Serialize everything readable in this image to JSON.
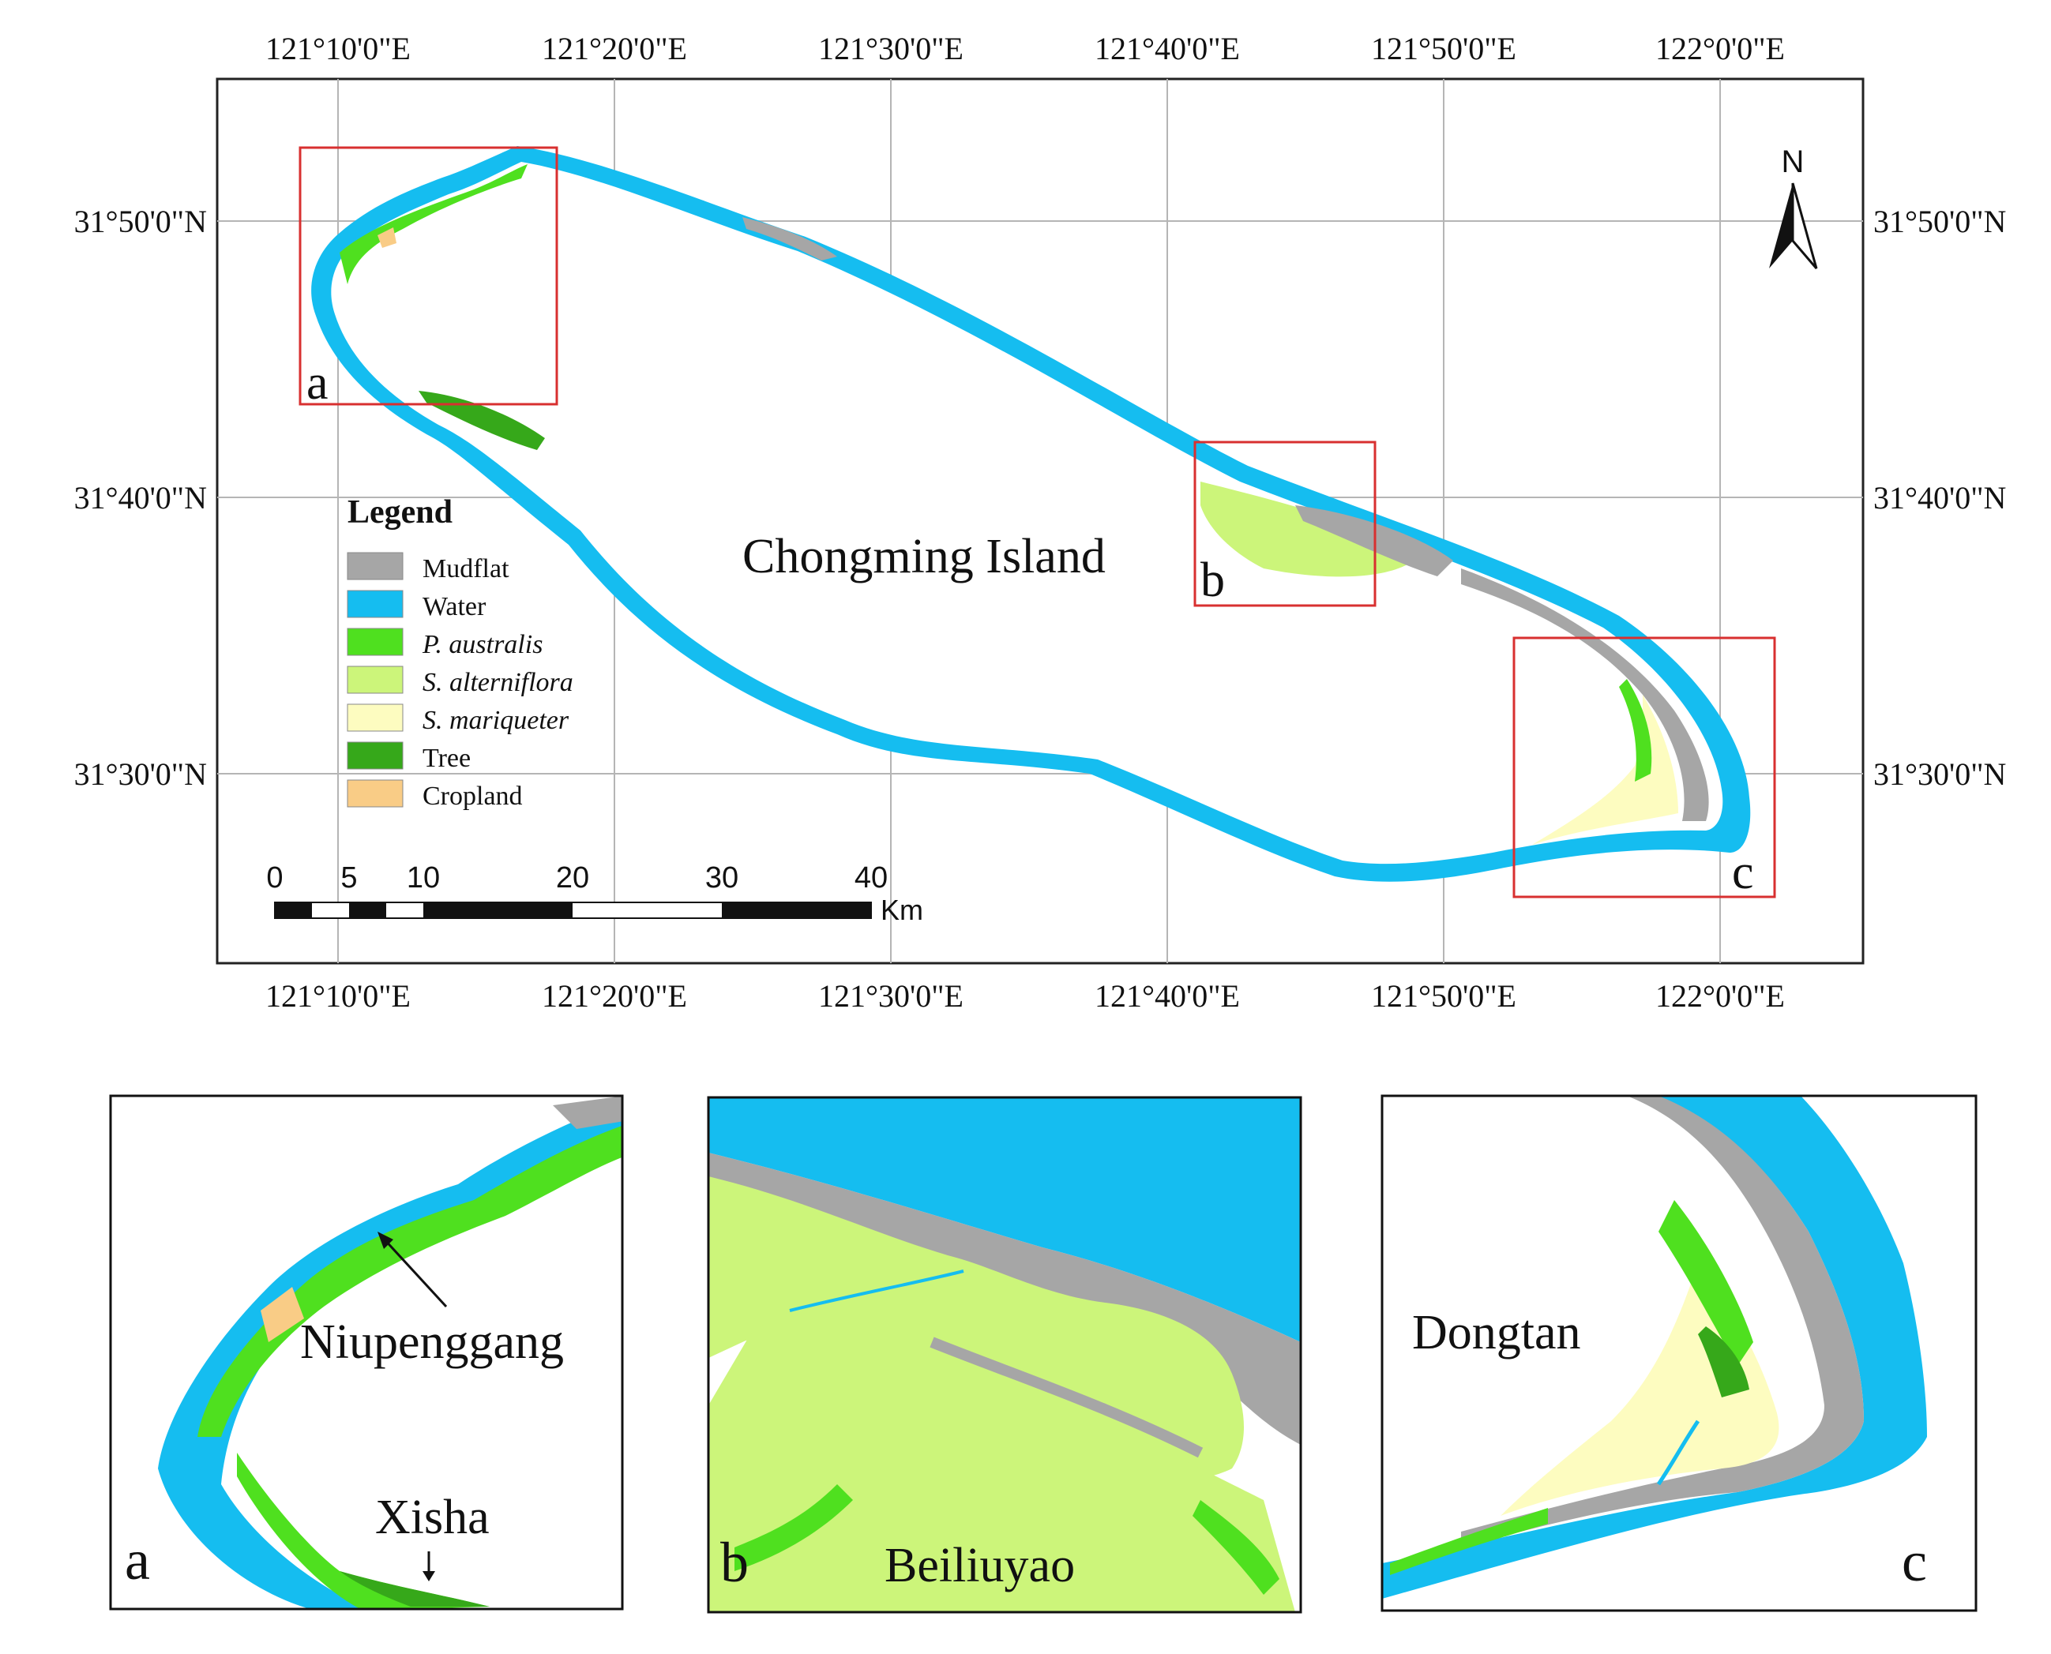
{
  "main_map": {
    "place_label": "Chongming Island",
    "longitude_labels": [
      "121°10'0\"E",
      "121°20'0\"E",
      "121°30'0\"E",
      "121°40'0\"E",
      "121°50'0\"E",
      "122°0'0\"E"
    ],
    "latitude_labels": [
      "31°50'0\"N",
      "31°40'0\"N",
      "31°30'0\"N"
    ],
    "inset_box_labels": {
      "a": "a",
      "b": "b",
      "c": "c"
    },
    "north_arrow": {
      "label": "N",
      "icon": "north-arrow-icon"
    }
  },
  "legend": {
    "title": "Legend",
    "items": [
      {
        "label": "Mudflat",
        "color": "#a6a6a6",
        "italic": false
      },
      {
        "label": "Water",
        "color": "#15bdf0",
        "italic": false
      },
      {
        "label": "P. australis",
        "color": "#4fe01f",
        "italic": true
      },
      {
        "label": "S. alterniflora",
        "color": "#ccf57a",
        "italic": true
      },
      {
        "label": "S. mariqueter",
        "color": "#fdfcc0",
        "italic": true
      },
      {
        "label": "Tree",
        "color": "#36a81a",
        "italic": false
      },
      {
        "label": "Cropland",
        "color": "#f9cc86",
        "italic": false
      }
    ]
  },
  "scale_bar": {
    "tick_labels": [
      "0",
      "5",
      "10",
      "20",
      "30",
      "40"
    ],
    "unit": "Km"
  },
  "insets": {
    "a": {
      "letter": "a",
      "labels": [
        "Niupenggang",
        "Xisha"
      ]
    },
    "b": {
      "letter": "b",
      "labels": [
        "Beiliuyao"
      ]
    },
    "c": {
      "letter": "c",
      "labels": [
        "Dongtan"
      ]
    }
  },
  "colors": {
    "mudflat": "#a6a6a6",
    "water": "#15bdf0",
    "p_australis": "#4fe01f",
    "s_alterniflora": "#ccf57a",
    "s_mariqueter": "#fdfcc0",
    "tree": "#36a81a",
    "cropland": "#f9cc86",
    "inset_box": "#d83030",
    "grid": "#b5b5b5"
  }
}
